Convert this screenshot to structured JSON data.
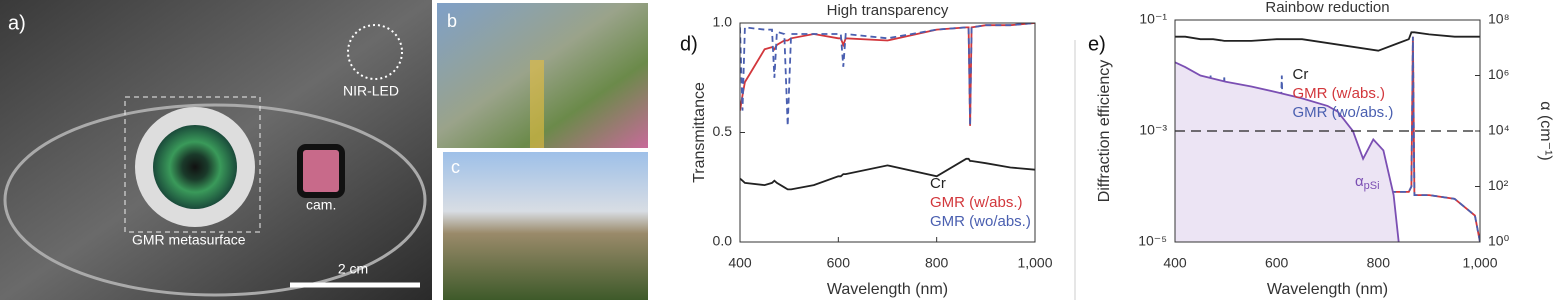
{
  "photos": {
    "a_label": "a)",
    "led": "NIR-LED",
    "cam": "cam.",
    "meta": "GMR metasurface",
    "scale": "2 cm",
    "b_label": "b",
    "c_label": "c"
  },
  "chart_data": [
    {
      "type": "line",
      "panel": "d)",
      "title": "High transparency",
      "xlabel": "Wavelength (nm)",
      "ylabel": "Transmittance",
      "x": [
        400,
        405,
        410,
        450,
        465,
        470,
        475,
        490,
        497,
        504,
        550,
        600,
        605,
        610,
        615,
        700,
        800,
        860,
        865,
        868,
        871,
        900,
        950,
        1000
      ],
      "series": [
        {
          "name": "Cr",
          "color": "#222222",
          "values": [
            0.29,
            0.28,
            0.27,
            0.26,
            0.27,
            0.28,
            0.27,
            0.25,
            0.24,
            0.24,
            0.26,
            0.3,
            0.3,
            0.31,
            0.31,
            0.35,
            0.3,
            0.38,
            0.38,
            0.37,
            0.37,
            0.36,
            0.34,
            0.33
          ]
        },
        {
          "name": "GMR (w/abs.)",
          "color": "#d2373c",
          "values": [
            0.6,
            0.67,
            0.73,
            0.88,
            0.89,
            0.88,
            0.9,
            0.92,
            0.92,
            0.93,
            0.95,
            0.93,
            0.93,
            0.9,
            0.93,
            0.92,
            0.97,
            0.98,
            0.98,
            0.53,
            0.98,
            0.99,
            0.99,
            1.0
          ]
        },
        {
          "name": "GMR (wo/abs.)",
          "color": "#4a5fb0",
          "dashed": true,
          "values": [
            0.98,
            0.6,
            0.98,
            0.97,
            0.97,
            0.75,
            0.96,
            0.95,
            0.53,
            0.95,
            0.95,
            0.95,
            0.95,
            0.8,
            0.95,
            0.93,
            0.97,
            0.98,
            0.98,
            0.53,
            0.98,
            0.99,
            0.99,
            1.0
          ]
        }
      ],
      "xlim": [
        400,
        1000
      ],
      "xticks": [
        400,
        600,
        800,
        {
          "value": 1000,
          "label": "1,000"
        }
      ],
      "ylim": [
        0,
        1
      ],
      "yticks": [
        {
          "value": 0,
          "label": "0.0"
        },
        {
          "value": 0.5,
          "label": "0.5"
        },
        {
          "value": 1,
          "label": "1.0"
        }
      ],
      "log_y": false,
      "legend": "lower right"
    },
    {
      "type": "line",
      "panel": "e)",
      "title": "Rainbow reduction",
      "xlabel": "Wavelength (nm)",
      "ylabel": "Diffraction efficiency",
      "y2label": "α (cm⁻¹)",
      "x": [
        400,
        403,
        405,
        407,
        420,
        450,
        465,
        470,
        475,
        490,
        497,
        500,
        550,
        600,
        605,
        610,
        615,
        650,
        800,
        860,
        865,
        868,
        871,
        900,
        950,
        990,
        1000
      ],
      "series": [
        {
          "name": "Cr",
          "color": "#222222",
          "values": [
            0.05,
            0.05,
            0.05,
            0.05,
            0.05,
            0.045,
            0.045,
            0.045,
            0.045,
            0.043,
            0.042,
            0.042,
            0.042,
            0.045,
            0.045,
            0.045,
            0.045,
            0.045,
            0.028,
            0.045,
            0.06,
            0.06,
            0.06,
            0.055,
            0.05,
            0.05,
            0.05
          ]
        },
        {
          "name": "GMR (w/abs.)",
          "color": "#d2373c",
          "values": [
            0.0008,
            0.0007,
            0.0006,
            0.0006,
            0.0006,
            0.0004,
            0.0003,
            0.0008,
            0.0004,
            0.00015,
            0.0003,
            0.0001,
            0.00012,
            0.00015,
            0.0002,
            0.001,
            0.0001,
            8e-05,
            8e-05,
            8e-05,
            0.0001,
            0.05,
            7e-05,
            7e-05,
            6e-05,
            3e-05,
            1e-05
          ]
        },
        {
          "name": "GMR (wo/abs.)",
          "color": "#4a5fb0",
          "dashed": true,
          "values": [
            0.0008,
            0.0007,
            1e-05,
            0.0006,
            0.0006,
            0.0004,
            0.0003,
            0.01,
            0.0004,
            0.00015,
            0.01,
            0.0001,
            0.00012,
            0.00015,
            0.0002,
            0.01,
            0.0001,
            8e-05,
            8e-05,
            8e-05,
            0.0001,
            0.05,
            7e-05,
            7e-05,
            6e-05,
            3e-05,
            1e-05
          ]
        },
        {
          "color": "#7b4fb3",
          "fill": "#ece4f4",
          "axis": "y2",
          "x": [
            400,
            420,
            450,
            500,
            550,
            600,
            650,
            700,
            720,
            750,
            770,
            790,
            810,
            830,
            840
          ],
          "values": [
            3000000,
            2000000,
            1000000,
            600000,
            400000,
            250000,
            150000,
            80000,
            50000,
            10000,
            1000,
            5000,
            2000,
            50,
            1
          ]
        }
      ],
      "xlim": [
        400,
        1000
      ],
      "xticks": [
        400,
        600,
        800,
        {
          "value": 1000,
          "label": "1,000"
        }
      ],
      "ylim": [
        1e-05,
        0.1
      ],
      "yticks": [
        {
          "value": 1e-05,
          "label": "10⁻⁵"
        },
        {
          "value": 0.001,
          "label": "10⁻³"
        },
        {
          "value": 0.1,
          "label": "10⁻¹"
        }
      ],
      "y2lim": [
        1,
        100000000
      ],
      "y2ticks": [
        {
          "value": 1,
          "label": "10⁰"
        },
        {
          "value": 100,
          "label": "10²"
        },
        {
          "value": 10000,
          "label": "10⁴"
        },
        {
          "value": 1000000,
          "label": "10⁶"
        },
        {
          "value": 100000000,
          "label": "10⁸"
        }
      ],
      "log_y": true,
      "log_y2": true,
      "hline": 0.001,
      "legend": "upper center",
      "annotation": {
        "text": "α",
        "sub": "pSi",
        "color": "#7b4fb3"
      }
    }
  ]
}
